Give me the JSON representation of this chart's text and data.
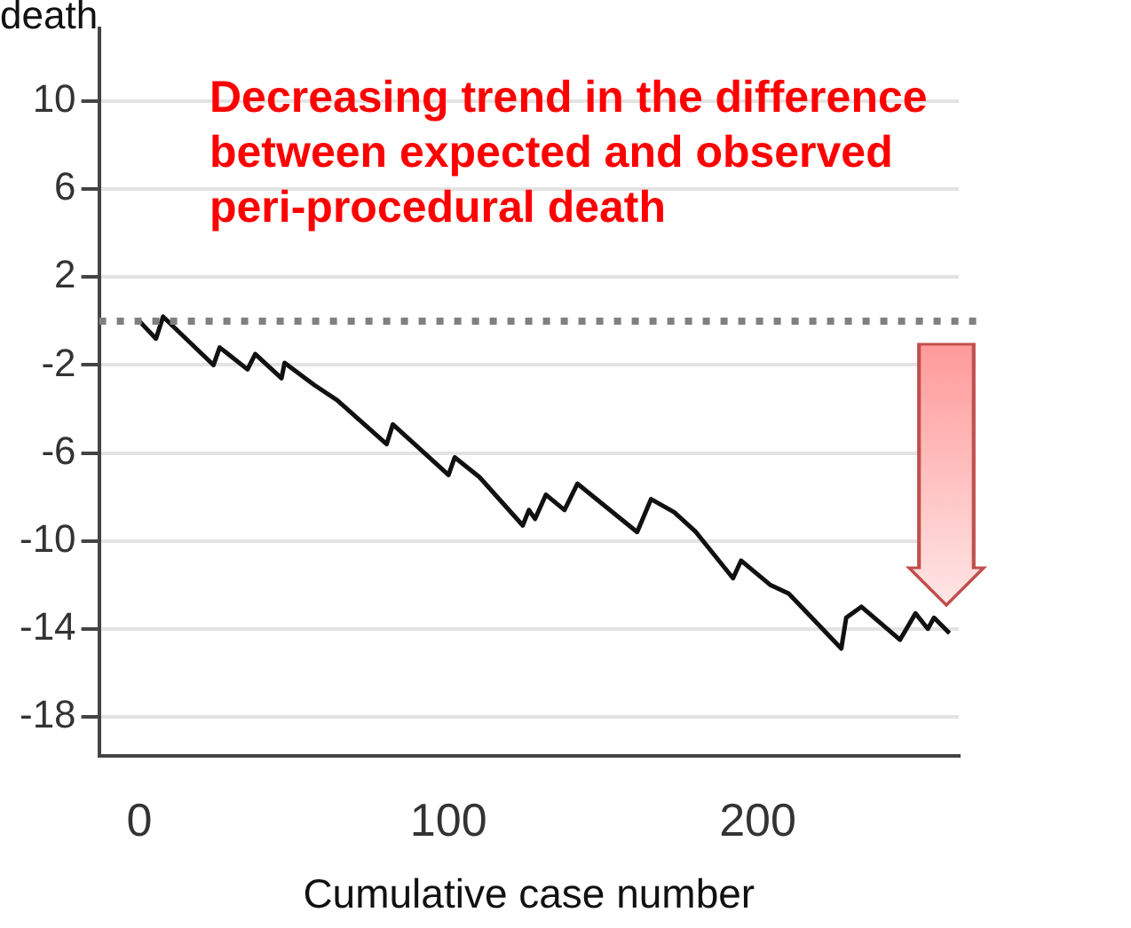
{
  "chart_data": {
    "type": "line",
    "ylabel": "death",
    "xlabel": "Cumulative case number",
    "annotations": [
      "Decreasing trend in the difference between expected and observed peri-procedural death"
    ],
    "series": [
      {
        "color": "#111111",
        "x": [
          0,
          5.4,
          7.7,
          24,
          26,
          35,
          37.5,
          46,
          47,
          56.5,
          64,
          80,
          82,
          100,
          102,
          110,
          124,
          126,
          128,
          131.5,
          137.5,
          141.7,
          161,
          165.5,
          173,
          180,
          192,
          194.6,
          204,
          210,
          227,
          228.6,
          233.5,
          246,
          251,
          255,
          257,
          262
        ],
        "values": [
          0,
          -0.8,
          0.2,
          -2.0,
          -1.2,
          -2.2,
          -1.5,
          -2.6,
          -1.9,
          -2.9,
          -3.6,
          -5.6,
          -4.7,
          -7.0,
          -6.2,
          -7.1,
          -9.3,
          -8.6,
          -9.0,
          -7.9,
          -8.6,
          -7.4,
          -9.6,
          -8.1,
          -8.7,
          -9.6,
          -11.7,
          -10.9,
          -12.0,
          -12.4,
          -14.9,
          -13.5,
          -13.0,
          -14.5,
          -13.3,
          -14.0,
          -13.5,
          -14.2
        ]
      }
    ],
    "xlim": [
      -13,
      265
    ],
    "xticks": [
      0,
      100,
      200
    ],
    "ylim": [
      -19.8,
      13.3
    ],
    "yticks": [
      -18,
      -14,
      -10,
      -6,
      -2,
      2,
      6,
      10
    ],
    "ref_lines": [
      {
        "axis": "y",
        "value": 0,
        "color": "#808080",
        "line_style": "dotted"
      }
    ],
    "grid": "y",
    "legend": false,
    "marker": "none",
    "line_style": "solid"
  }
}
